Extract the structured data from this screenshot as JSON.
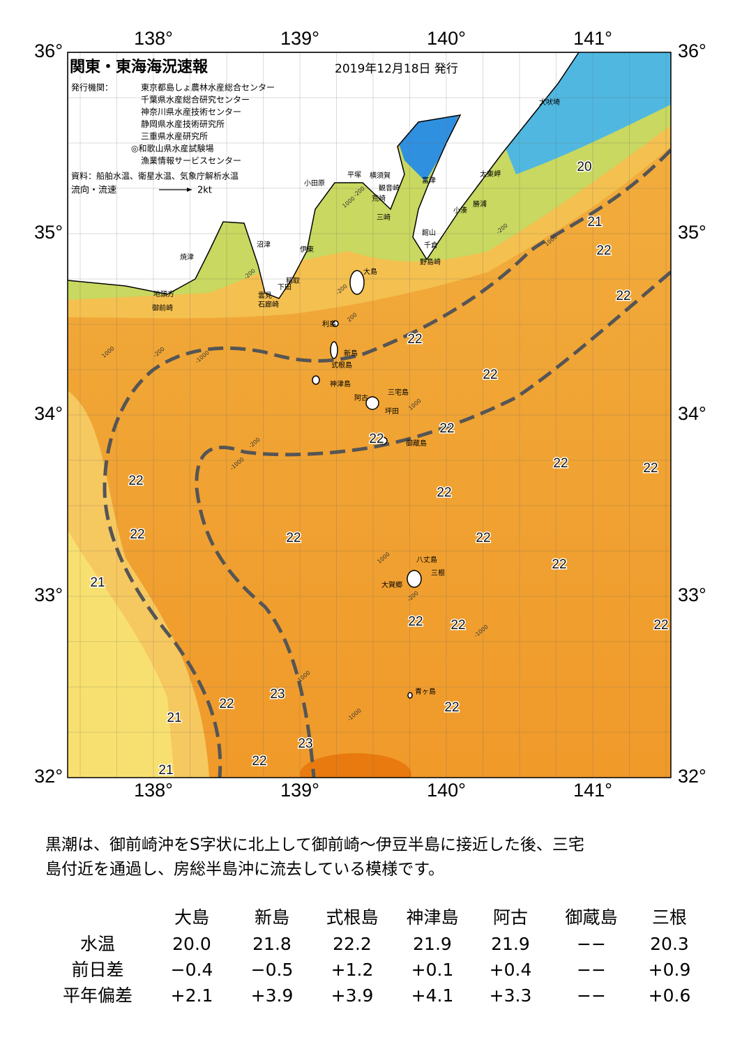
{
  "map": {
    "title": "関東・東海海況速報",
    "date": "2019年12月18日 発行",
    "issuer_label": "発行機関：",
    "issuers": [
      "東京都島しょ農林水産総合センター",
      "千葉県水産総合研究センター",
      "神奈川県水産技術センター",
      "静岡県水産技術研究所",
      "三重県水産研究所",
      "◎和歌山県水産試験場",
      "漁業情報サービスセンター"
    ],
    "sources": "資料：船舶水温、衛星水温、気象庁解析水温",
    "flow_label": "流向・流速",
    "flow_scale": "2kt",
    "lon_ticks": [
      "138°",
      "139°",
      "140°",
      "141°"
    ],
    "lat_ticks": [
      "36°",
      "35°",
      "34°",
      "33°",
      "32°"
    ],
    "places": [
      "犬吠埼",
      "太東岬",
      "勝浦",
      "小湊",
      "富津",
      "館山",
      "千倉",
      "野島崎",
      "平塚",
      "横須賀",
      "観音崎",
      "荒崎",
      "三崎",
      "小田原",
      "沼津",
      "伊東",
      "焼津",
      "稲取",
      "下田",
      "雲見",
      "石廊崎",
      "地頭方",
      "御前崎",
      "大島",
      "利島",
      "新島",
      "式根島",
      "神津島",
      "三宅島",
      "阿古",
      "坪田",
      "御蔵島",
      "八丈島",
      "三根",
      "大賀郷",
      "青ヶ島"
    ],
    "isotherm_labels": [
      20,
      21,
      22,
      22,
      22,
      22,
      22,
      22,
      22,
      22,
      22,
      22,
      22,
      22,
      22,
      22,
      21,
      22,
      22,
      22,
      23,
      22,
      22,
      21,
      23,
      22,
      21
    ],
    "depth_labels": [
      -200,
      1000,
      1000,
      -200,
      -1000,
      -200,
      200,
      -200,
      -1000,
      1000,
      1000,
      -200,
      -1000,
      1000,
      -1000,
      -200,
      1000,
      -200
    ]
  },
  "description": [
    "黒潮は、御前崎沖をS字状に北上して御前崎～伊豆半島に接近した後、三宅",
    "島付近を通過し、房総半島沖に流去している模様です。"
  ],
  "table": {
    "header": [
      "大島",
      "新島",
      "式根島",
      "神津島",
      "阿古",
      "御蔵島",
      "三根"
    ],
    "rows": [
      [
        "水温",
        "20.0",
        "21.8",
        "22.2",
        "21.9",
        "21.9",
        "−−",
        "20.3"
      ],
      [
        "前日差",
        "−0.4",
        "−0.5",
        "+1.2",
        "+0.1",
        "+0.4",
        "−−",
        "+0.9"
      ],
      [
        "平年偏差",
        "+2.1",
        "+3.9",
        "+3.9",
        "+4.1",
        "+3.3",
        "−−",
        "+0.6"
      ]
    ]
  }
}
